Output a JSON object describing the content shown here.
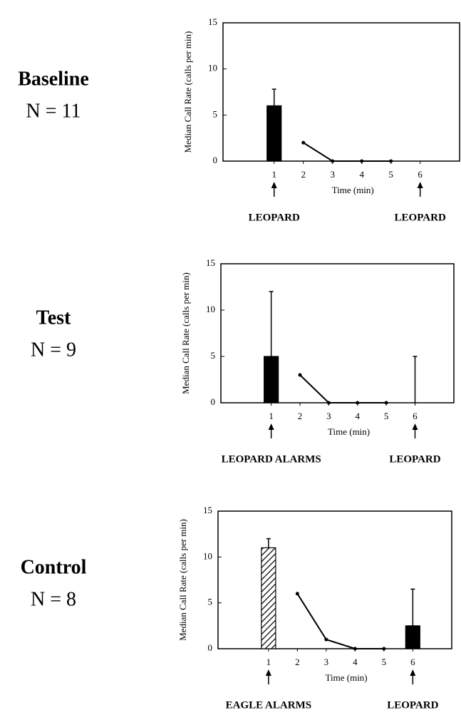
{
  "chart_data": [
    {
      "type": "bar_line",
      "label": "Baseline",
      "n_label": "N = 11",
      "ylabel": "Median Call Rate (calls per min)",
      "xlabel": "Time (min)",
      "xlim": [
        -0.75,
        7.35
      ],
      "xticks": [
        1,
        2,
        3,
        4,
        5,
        6
      ],
      "ylim": [
        0,
        15
      ],
      "yticks": [
        0,
        5,
        10,
        15
      ],
      "bars": {
        "x": [
          1
        ],
        "values": [
          6
        ],
        "errors": [
          1.8
        ],
        "fill": [
          "solid"
        ]
      },
      "line": {
        "x": [
          2,
          3,
          4,
          5
        ],
        "values": [
          2,
          0,
          0,
          0
        ]
      },
      "annotations": [
        {
          "x": 1,
          "text": "LEOPARD"
        },
        {
          "x": 6,
          "text": "LEOPARD"
        }
      ]
    },
    {
      "type": "bar_line",
      "label": "Test",
      "n_label": "N = 9",
      "ylabel": "Median Call Rate (calls per min)",
      "xlabel": "Time (min)",
      "xlim": [
        -0.75,
        7.35
      ],
      "xticks": [
        1,
        2,
        3,
        4,
        5,
        6
      ],
      "ylim": [
        0,
        15
      ],
      "yticks": [
        0,
        5,
        10,
        15
      ],
      "bars": {
        "x": [
          1,
          6
        ],
        "values": [
          5,
          0
        ],
        "errors": [
          7,
          5
        ],
        "fill": [
          "solid",
          "solid"
        ]
      },
      "line": {
        "x": [
          2,
          3,
          4,
          5
        ],
        "values": [
          3,
          0,
          0,
          0
        ]
      },
      "annotations": [
        {
          "x": 1,
          "text": "LEOPARD ALARMS"
        },
        {
          "x": 6,
          "text": "LEOPARD"
        }
      ]
    },
    {
      "type": "bar_line",
      "label": "Control",
      "n_label": "N = 8",
      "ylabel": "Median Call Rate (calls per min)",
      "xlabel": "Time (min)",
      "xlim": [
        -0.75,
        7.35
      ],
      "xticks": [
        1,
        2,
        3,
        4,
        5,
        6
      ],
      "ylim": [
        0,
        15
      ],
      "yticks": [
        0,
        5,
        10,
        15
      ],
      "bars": {
        "x": [
          1,
          6
        ],
        "values": [
          11,
          2.5
        ],
        "errors": [
          1,
          4
        ],
        "fill": [
          "hatch",
          "solid"
        ]
      },
      "line": {
        "x": [
          2,
          3,
          4,
          5
        ],
        "values": [
          6,
          1,
          0,
          0
        ]
      },
      "annotations": [
        {
          "x": 1,
          "text": "EAGLE ALARMS"
        },
        {
          "x": 6,
          "text": "LEOPARD"
        }
      ]
    }
  ]
}
